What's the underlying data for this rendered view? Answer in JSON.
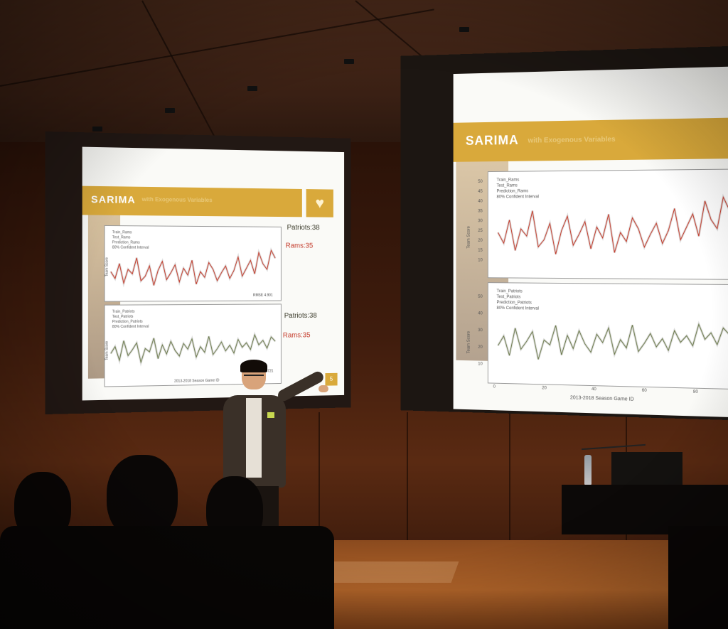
{
  "left_slide": {
    "title": "SARIMA",
    "subtitle": "with Exogenous Variables",
    "top_panel": {
      "legend": [
        "Train_Rams",
        "Test_Rams",
        "Prediction_Rams",
        "80% Confident Interval"
      ],
      "ylabel": "Team Score",
      "rmse": "RMSE 4.901"
    },
    "bottom_panel": {
      "legend": [
        "Train_Patriots",
        "Test_Patriots",
        "Prediction_Patriots",
        "80% Confident Interval"
      ],
      "ylabel": "Team Score",
      "rmse": "RMSE 4.7721",
      "xlabel": "2013-2018 Season Game ID"
    },
    "annotations": {
      "top_patriots": "Patriots:38",
      "top_rams": "Rams:35",
      "bottom_patriots": "Patriots:38",
      "bottom_rams": "Rams:35"
    },
    "page_number": "5",
    "heart_icon": "heart-icon"
  },
  "right_slide": {
    "title": "SARIMA",
    "subtitle": "with Exogenous Variables",
    "top_panel": {
      "legend": [
        "Train_Rams",
        "Test_Rams",
        "Prediction_Rams",
        "80% Confident Interval"
      ],
      "ylabel": "Team Score",
      "yticks": [
        "50",
        "45",
        "40",
        "35",
        "30",
        "25",
        "20",
        "15",
        "10"
      ]
    },
    "bottom_panel": {
      "legend": [
        "Train_Patriots",
        "Test_Patriots",
        "Prediction_Patriots",
        "80% Confident Interval"
      ],
      "ylabel": "Team Score",
      "yticks": [
        "50",
        "40",
        "30",
        "20",
        "10"
      ],
      "xticks": [
        "0",
        "20",
        "40",
        "60",
        "80"
      ],
      "xlabel": "2013-2018 Season Game ID"
    }
  },
  "colors": {
    "accent": "#d9a93b",
    "rams_line": "#c43a2a",
    "patriots_line": "#6b7a4a"
  },
  "series_shape": {
    "rams": [
      28,
      22,
      35,
      18,
      30,
      26,
      40,
      20,
      24,
      33,
      16,
      29,
      37,
      21,
      27,
      34,
      19,
      31,
      25,
      38,
      17,
      28,
      23,
      36,
      30,
      20,
      27,
      33,
      22,
      29,
      41,
      24,
      31,
      38,
      26,
      45,
      35,
      30,
      47,
      40
    ],
    "patriots": [
      27,
      33,
      21,
      38,
      25,
      30,
      36,
      19,
      31,
      28,
      40,
      22,
      34,
      26,
      37,
      29,
      24,
      35,
      30,
      39,
      23,
      32,
      27,
      41,
      25,
      30,
      36,
      28,
      33,
      26,
      38,
      31,
      35,
      29,
      42,
      33,
      37,
      30,
      40,
      36
    ]
  }
}
